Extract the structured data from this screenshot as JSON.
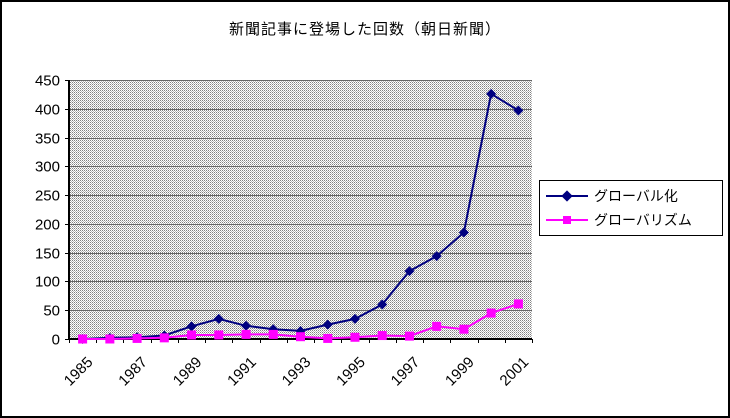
{
  "chart_data": {
    "type": "line",
    "title": "新聞記事に登場した回数（朝日新聞）",
    "categories": [
      1985,
      1986,
      1987,
      1988,
      1989,
      1990,
      1991,
      1992,
      1993,
      1994,
      1995,
      1996,
      1997,
      1998,
      1999,
      2000,
      2001
    ],
    "x_tick_labels": [
      "1985",
      "1987",
      "1989",
      "1991",
      "1993",
      "1995",
      "1997",
      "1999",
      "2001"
    ],
    "series": [
      {
        "name": "グローバル化",
        "color": "#000080",
        "marker": "diamond",
        "values": [
          0,
          2,
          3,
          6,
          22,
          35,
          23,
          17,
          14,
          25,
          35,
          60,
          118,
          144,
          185,
          426,
          397
        ]
      },
      {
        "name": "グローバリズム",
        "color": "#FF00FF",
        "marker": "square",
        "values": [
          0,
          0,
          1,
          2,
          7,
          7,
          8,
          8,
          4,
          1,
          3,
          6,
          5,
          22,
          17,
          45,
          61
        ]
      }
    ],
    "ylabel": "",
    "xlabel": "",
    "ylim": [
      0,
      450
    ],
    "ytick_step": 50,
    "grid": true,
    "legend_position": "right",
    "plot_bg": "stippled-gray",
    "colors": {
      "axis": "#000000",
      "gridline": "#666666",
      "plot_dot": "#808080",
      "text": "#000000"
    }
  }
}
